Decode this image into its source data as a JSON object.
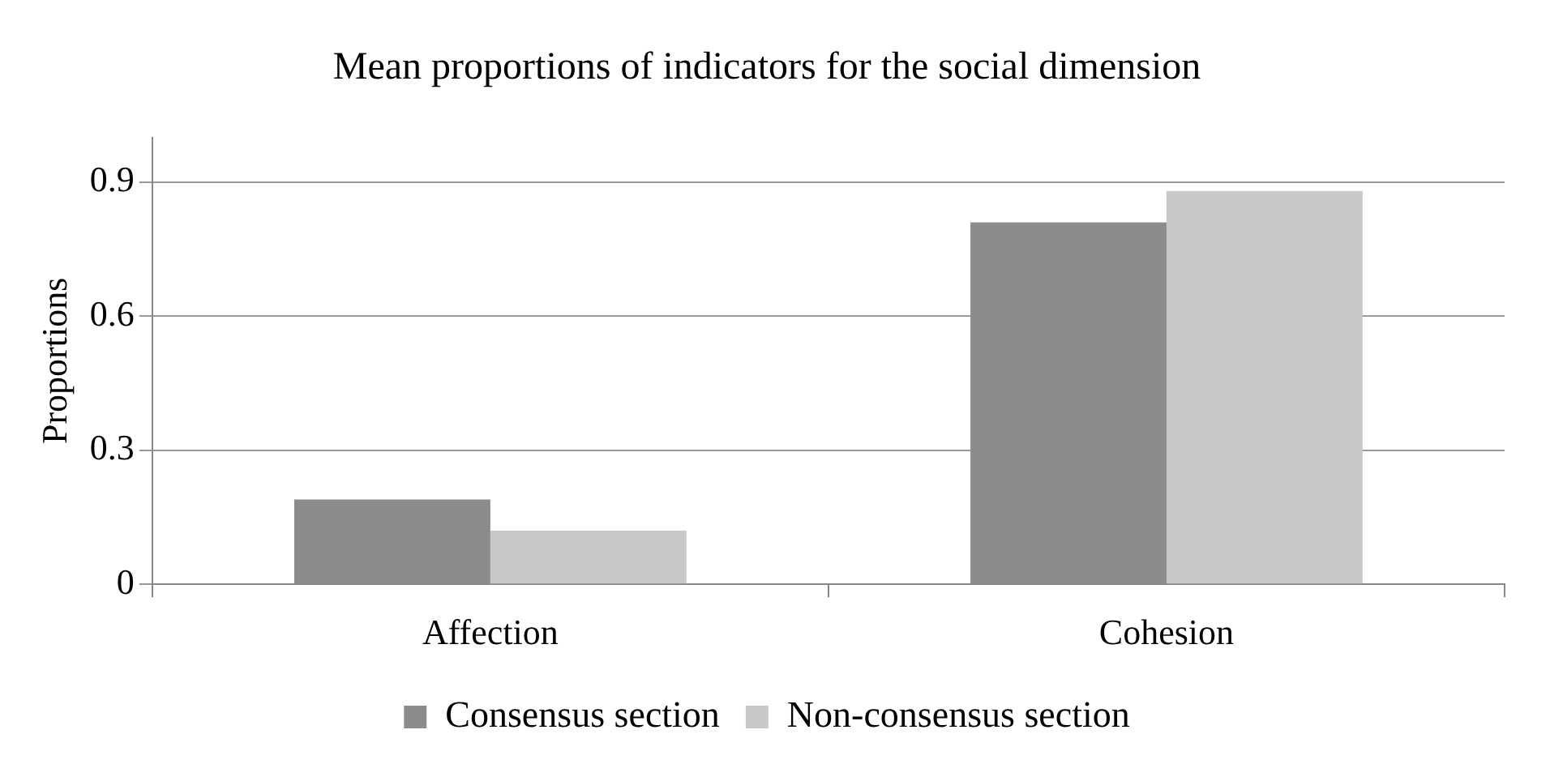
{
  "chart_data": {
    "type": "bar",
    "title": "Mean proportions of indicators for the social dimension",
    "ylabel": "Proportions",
    "categories": [
      "Affection",
      "Cohesion"
    ],
    "series": [
      {
        "name": "Consensus section",
        "color": "#8c8c8c",
        "values": [
          0.19,
          0.81
        ]
      },
      {
        "name": "Non-consensus section",
        "color": "#c8c8c8",
        "values": [
          0.12,
          0.88
        ]
      }
    ],
    "ylim": [
      0,
      1
    ],
    "yticks": [
      0,
      0.3,
      0.6,
      0.9
    ],
    "grid": "y",
    "legend": "bottom"
  }
}
